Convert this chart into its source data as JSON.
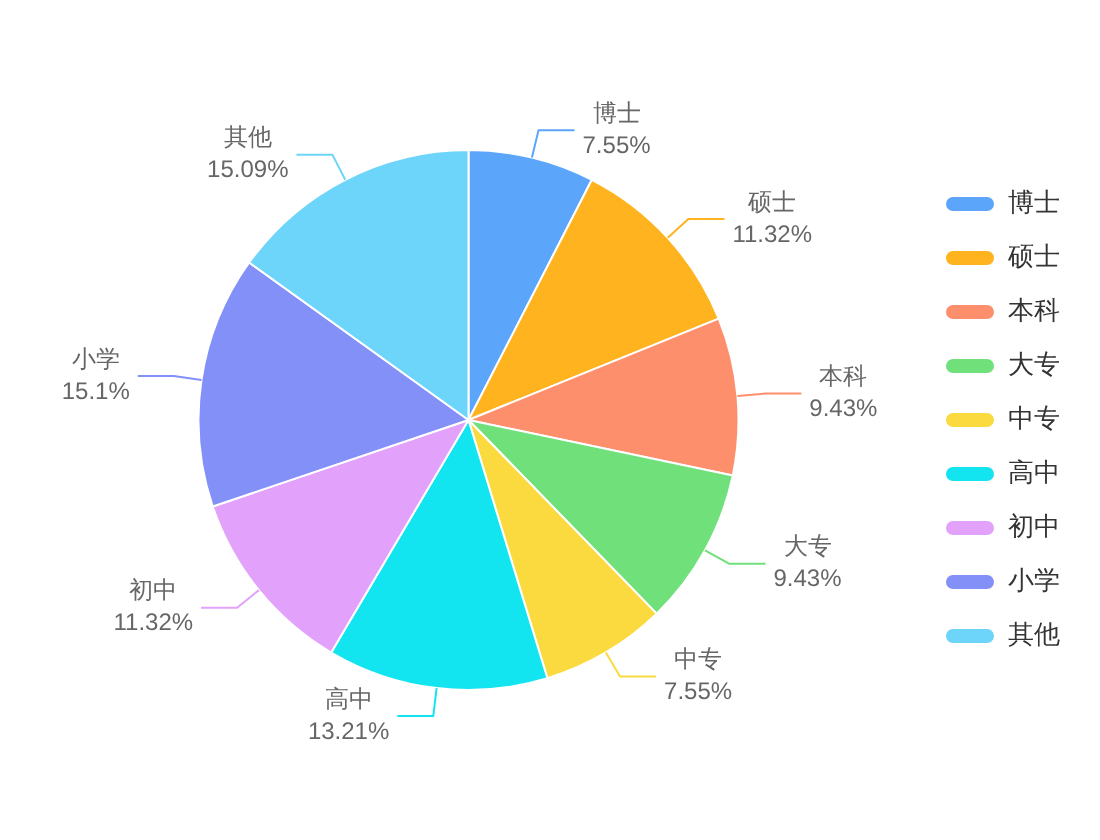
{
  "chart_data": {
    "type": "pie",
    "categories": [
      "博士",
      "硕士",
      "本科",
      "大专",
      "中专",
      "高中",
      "初中",
      "小学",
      "其他"
    ],
    "values": [
      7.55,
      11.32,
      9.43,
      9.43,
      7.55,
      13.21,
      11.32,
      15.1,
      15.09
    ],
    "value_labels": [
      "7.55%",
      "11.32%",
      "9.43%",
      "9.43%",
      "7.55%",
      "13.21%",
      "11.32%",
      "15.1%",
      "15.09%"
    ],
    "colors": [
      "#5ba5fb",
      "#ffb41f",
      "#fd8f6c",
      "#6fe07a",
      "#fbda3f",
      "#12e4f0",
      "#e2a1fa",
      "#8390f8",
      "#6dd4fa"
    ],
    "legend": "right"
  }
}
